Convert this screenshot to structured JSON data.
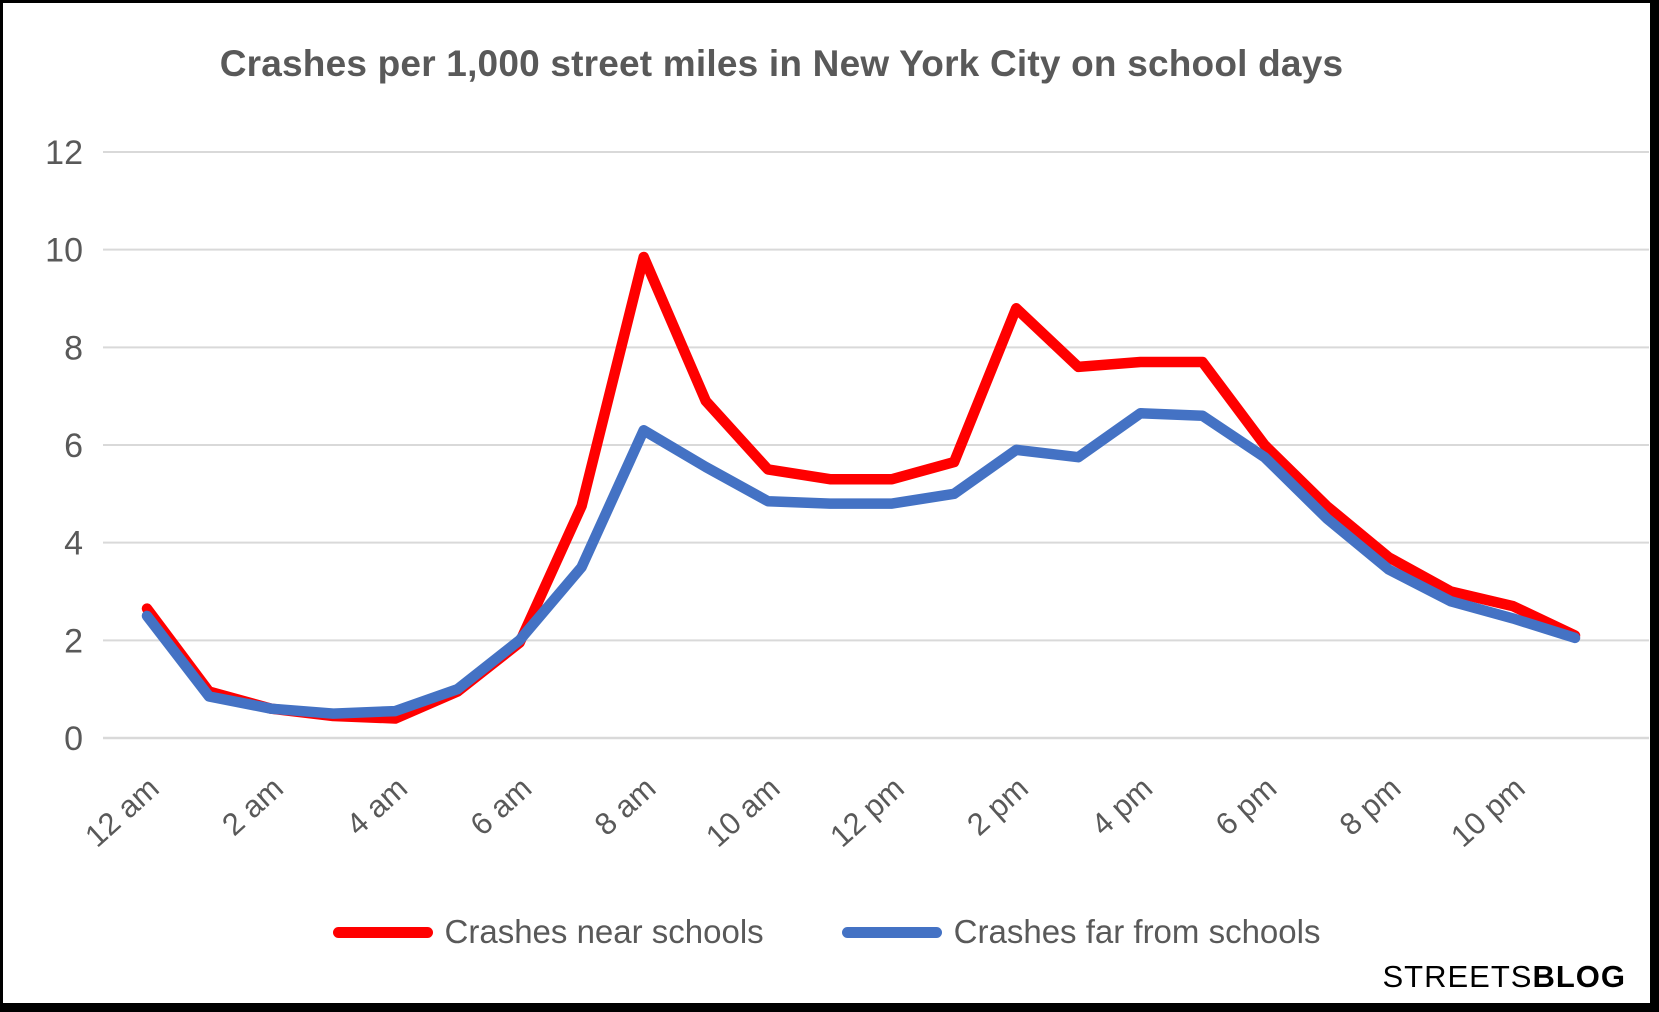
{
  "title": "Crashes per 1,000 street miles in New York City on school days",
  "colors": {
    "near_schools": "#FF0000",
    "far_from_schools": "#4472C4",
    "gridline": "#D9D9D9",
    "axis_text": "#595959",
    "title_text": "#595959",
    "logo_text": "#000000"
  },
  "legend": {
    "items": [
      {
        "label": "Crashes near schools",
        "color": "#FF0000"
      },
      {
        "label": "Crashes far from schools",
        "color": "#4472C4"
      }
    ]
  },
  "logo": {
    "regular": "STREETS",
    "bold": "BLOG"
  },
  "chart_data": {
    "type": "line",
    "title": "Crashes per 1,000 street miles in New York City on school days",
    "xlabel": "",
    "ylabel": "",
    "ylim": [
      0,
      12
    ],
    "grid": "horizontal",
    "legend_position": "bottom",
    "x": [
      "12 am",
      "1 am",
      "2 am",
      "3 am",
      "4 am",
      "5 am",
      "6 am",
      "7 am",
      "8 am",
      "9 am",
      "10 am",
      "11 am",
      "12 pm",
      "1 pm",
      "2 pm",
      "3 pm",
      "4 pm",
      "5 pm",
      "6 pm",
      "7 pm",
      "8 pm",
      "9 pm",
      "10 pm",
      "11 pm"
    ],
    "x_tick_labels": [
      "12 am",
      "2 am",
      "4 am",
      "6 am",
      "8 am",
      "10 am",
      "12 pm",
      "2 pm",
      "4 pm",
      "6 pm",
      "8 pm",
      "10 pm"
    ],
    "y_ticks": [
      0,
      2,
      4,
      6,
      8,
      10,
      12
    ],
    "series": [
      {
        "name": "Crashes near schools",
        "color": "#FF0000",
        "values": [
          2.65,
          0.95,
          0.6,
          0.45,
          0.4,
          0.95,
          1.95,
          4.75,
          9.85,
          6.9,
          5.5,
          5.3,
          5.3,
          5.65,
          8.8,
          7.6,
          7.7,
          7.7,
          6.0,
          4.75,
          3.7,
          3.0,
          2.7,
          2.1
        ]
      },
      {
        "name": "Crashes far from schools",
        "color": "#4472C4",
        "values": [
          2.5,
          0.85,
          0.6,
          0.5,
          0.55,
          1.0,
          2.0,
          3.5,
          6.3,
          5.55,
          4.85,
          4.8,
          4.8,
          5.0,
          5.9,
          5.75,
          6.65,
          6.6,
          5.75,
          4.5,
          3.45,
          2.8,
          2.45,
          2.05
        ]
      }
    ]
  }
}
